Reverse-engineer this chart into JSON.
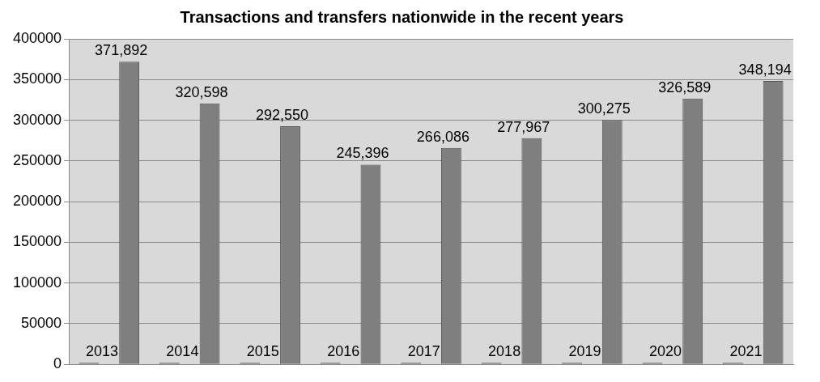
{
  "chart_data": {
    "type": "bar",
    "title": "Transactions and transfers nationwide in the recent years",
    "categories": [
      null,
      null,
      null,
      null,
      null,
      null,
      null,
      null,
      null
    ],
    "series": [
      {
        "color": "#7f7f7f",
        "values": [
          2013,
          2014,
          2015,
          2016,
          2017,
          2018,
          2019,
          2020,
          2021
        ],
        "value_labels": [
          "2013",
          "2014",
          "2015",
          "2016",
          "2017",
          "2018",
          "2019",
          "2020",
          "2021"
        ]
      },
      {
        "color": "#7f7f7f",
        "values": [
          371892,
          320598,
          292550,
          245396,
          266086,
          277967,
          300275,
          326589,
          348194
        ],
        "value_labels": [
          "371,892",
          "320,598",
          "292,550",
          "245,396",
          "266,086",
          "277,967",
          "300,275",
          "326,589",
          "348,194"
        ]
      }
    ],
    "ylim": [
      0,
      400000
    ],
    "yticks": [
      0,
      50000,
      100000,
      150000,
      200000,
      250000,
      300000,
      350000,
      400000
    ],
    "grid": "y",
    "legend": false
  }
}
